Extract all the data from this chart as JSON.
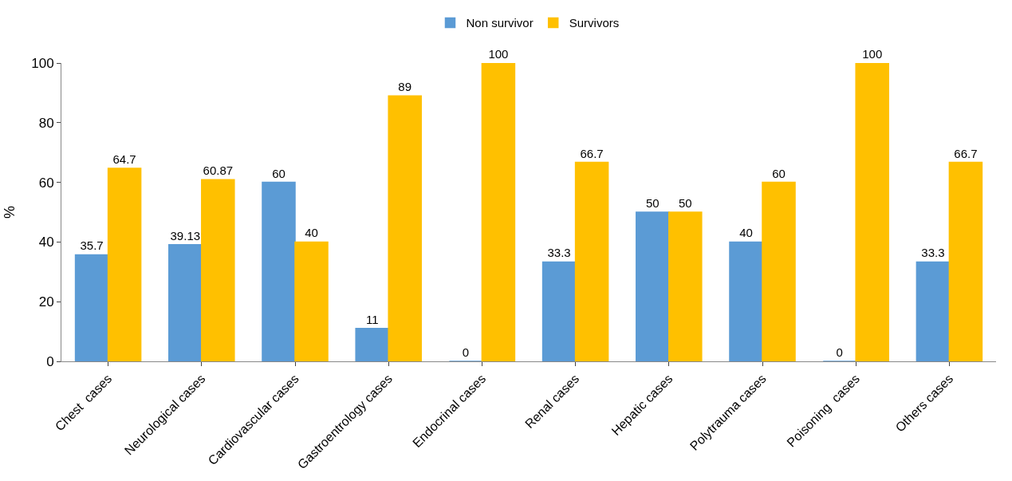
{
  "chart_data": {
    "type": "bar",
    "ylabel": "%",
    "categories": [
      "Chest  cases",
      "Neurological cases",
      "Cardiovascular cases",
      "Gastroentrology cases",
      "Endocrinal cases",
      "Renal cases",
      "Hepatic cases",
      "Polytrauma cases",
      "Poisoning  cases",
      "Others cases"
    ],
    "series": [
      {
        "name": "Non survivor",
        "color": "#5b9bd5",
        "values": [
          35.7,
          39.13,
          60,
          11,
          0,
          33.3,
          50,
          40,
          0,
          33.3
        ]
      },
      {
        "name": "Survivors",
        "color": "#ffc000",
        "values": [
          64.7,
          60.87,
          40,
          89,
          100,
          66.7,
          50,
          60,
          100,
          66.7
        ]
      }
    ],
    "ylim": [
      0,
      100
    ],
    "yticks": [
      0,
      20,
      40,
      60,
      80,
      100
    ],
    "legend": "top",
    "data_labels": true
  }
}
